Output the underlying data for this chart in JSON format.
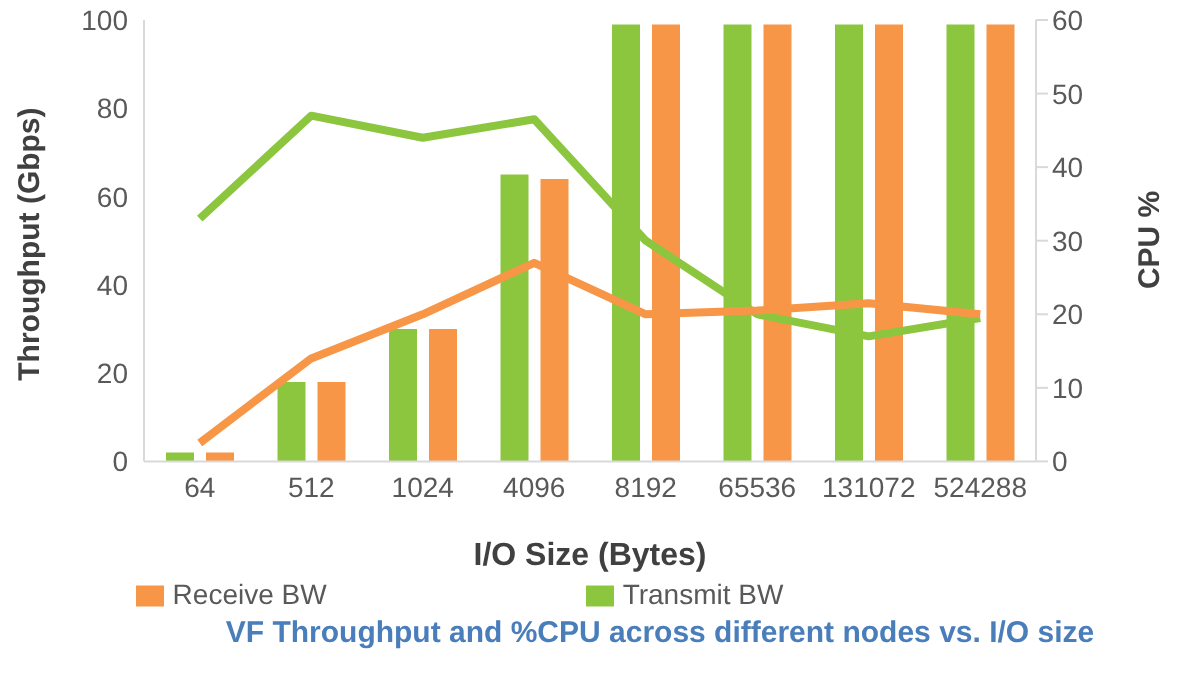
{
  "chart_data": {
    "type": "bar",
    "title": "VF Throughput and %CPU across different nodes vs. I/O size",
    "xlabel": "I/O Size (Bytes)",
    "ylabel": "Throughput (Gbps)",
    "y2label": "CPU %",
    "categories": [
      "64",
      "512",
      "1024",
      "4096",
      "8192",
      "65536",
      "131072",
      "524288"
    ],
    "series": [
      {
        "name": "Transmit BW",
        "color": "#8cc63f",
        "values": [
          2,
          18,
          30,
          65,
          99,
          99,
          99,
          99
        ]
      },
      {
        "name": "Receive BW",
        "color": "#f79646",
        "values": [
          2,
          18,
          30,
          64,
          99,
          99,
          99,
          99
        ]
      },
      {
        "type": "line",
        "axis": "y2",
        "color": "#8cc63f",
        "values": [
          33,
          47,
          44,
          46.5,
          30,
          20,
          17,
          19.5
        ]
      },
      {
        "type": "line",
        "axis": "y2",
        "color": "#f79646",
        "values": [
          2.5,
          14,
          20,
          27,
          20,
          20.5,
          21.5,
          20
        ]
      }
    ],
    "ylim": [
      0,
      100
    ],
    "yticks": [
      0,
      20,
      40,
      60,
      80,
      100
    ],
    "y2lim": [
      0,
      60
    ],
    "y2ticks": [
      0,
      10,
      20,
      30,
      40,
      50,
      60
    ],
    "grid": false,
    "legend": "bottom",
    "marker": "none",
    "line_style": "solid"
  }
}
